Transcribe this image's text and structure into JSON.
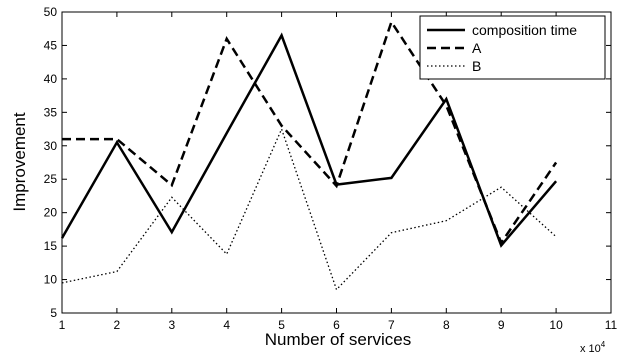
{
  "chart_data": {
    "type": "line",
    "title": "",
    "xlabel": "Number of services",
    "ylabel": "Improvement",
    "x_multiplier_label": {
      "base": "x 10",
      "exponent": "4"
    },
    "xlim": [
      1,
      11
    ],
    "ylim": [
      5,
      50
    ],
    "x_ticks": [
      1,
      2,
      3,
      4,
      5,
      6,
      7,
      8,
      9,
      10,
      11
    ],
    "y_ticks": [
      5,
      10,
      15,
      20,
      25,
      30,
      35,
      40,
      45,
      50
    ],
    "grid": false,
    "legend_position": "top-right",
    "x": [
      1,
      2,
      3,
      4,
      5,
      6,
      7,
      8,
      9,
      10
    ],
    "series": [
      {
        "name": "composition time",
        "style": "solid",
        "color": "#000000",
        "values": [
          16.2,
          30.5,
          17.1,
          31.9,
          46.5,
          24.2,
          25.2,
          37.0,
          15.1,
          24.7
        ]
      },
      {
        "name": "A",
        "style": "dashed",
        "color": "#000000",
        "values": [
          31.0,
          31.0,
          24.1,
          46.0,
          33.0,
          24.0,
          48.5,
          36.0,
          15.5,
          27.5
        ]
      },
      {
        "name": "B",
        "style": "dotted",
        "color": "#000000",
        "values": [
          9.5,
          11.2,
          22.3,
          13.8,
          32.5,
          8.5,
          17.0,
          18.8,
          23.8,
          16.4
        ]
      }
    ]
  }
}
